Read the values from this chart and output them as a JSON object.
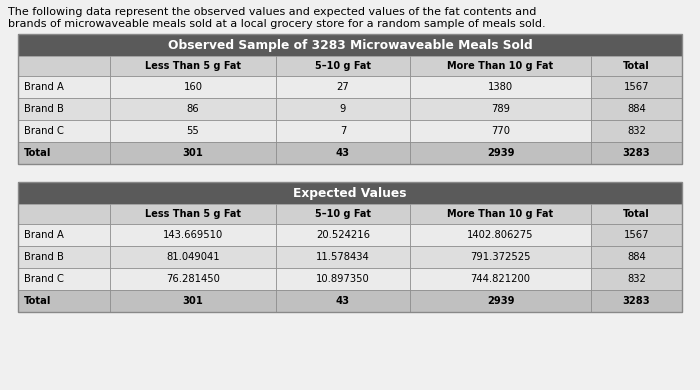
{
  "intro_text_line1": "The following data represent the observed values and expected values of the fat contents and",
  "intro_text_line2": "brands of microwaveable meals sold at a local grocery store for a random sample of meals sold.",
  "table1_title": "Observed Sample of 3283 Microwaveable Meals Sold",
  "table2_title": "Expected Values",
  "col_headers": [
    "",
    "Less Than 5 g Fat",
    "5–10 g Fat",
    "More Than 10 g Fat",
    "Total"
  ],
  "row_labels": [
    "Brand A",
    "Brand B",
    "Brand C",
    "Total"
  ],
  "observed_data": [
    [
      "160",
      "27",
      "1380",
      "1567"
    ],
    [
      "86",
      "9",
      "789",
      "884"
    ],
    [
      "55",
      "7",
      "770",
      "832"
    ],
    [
      "301",
      "43",
      "2939",
      "3283"
    ]
  ],
  "expected_data": [
    [
      "143.669510",
      "20.524216",
      "1402.806275",
      "1567"
    ],
    [
      "81.049041",
      "11.578434",
      "791.372525",
      "884"
    ],
    [
      "76.281450",
      "10.897350",
      "744.821200",
      "832"
    ],
    [
      "301",
      "43",
      "2939",
      "3283"
    ]
  ],
  "header_bg": "#5a5a5a",
  "header_text_color": "#ffffff",
  "subheader_bg": "#d0d0d0",
  "row_bg_light": "#ebebeb",
  "row_bg_mid": "#dedede",
  "total_row_bg": "#c0c0c0",
  "total_col_bg": "#d0d0d0",
  "border_color": "#888888",
  "text_color": "#000000",
  "bg_color": "#e8e8e8",
  "outer_bg": "#d4d4d4"
}
